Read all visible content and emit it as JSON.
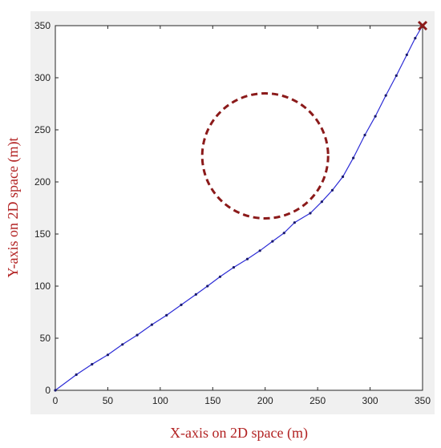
{
  "chart_data": {
    "type": "line",
    "title": "",
    "xlabel": "X-axis on 2D space (m)",
    "ylabel": "Y-axis on 2D space (m)t",
    "xlim": [
      0,
      350
    ],
    "ylim": [
      0,
      350
    ],
    "xticks": [
      0,
      50,
      100,
      150,
      200,
      250,
      300,
      350
    ],
    "yticks": [
      0,
      50,
      100,
      150,
      200,
      250,
      300,
      350
    ],
    "grid": false,
    "series": [
      {
        "color": "#2b2bd6",
        "marker": "dot",
        "x": [
          0,
          20,
          35,
          50,
          64,
          78,
          92,
          106,
          120,
          134,
          145,
          157,
          170,
          183,
          195,
          207,
          218,
          228,
          243,
          254,
          264,
          274,
          284,
          295,
          305,
          315,
          325,
          335,
          343,
          350
        ],
        "y": [
          0,
          15,
          25,
          34,
          44,
          53,
          63,
          72,
          82,
          92,
          100,
          109,
          118,
          126,
          134,
          143,
          151,
          161,
          170,
          181,
          192,
          205,
          223,
          245,
          263,
          283,
          302,
          322,
          338,
          350
        ]
      }
    ],
    "obstacle": {
      "shape": "circle",
      "center": [
        200,
        225
      ],
      "radius": 60,
      "style": "dashed",
      "color": "#8b1a1a"
    },
    "goal_marker": {
      "x": 350,
      "y": 350,
      "symbol": "x",
      "color": "#8b1a1a"
    }
  }
}
